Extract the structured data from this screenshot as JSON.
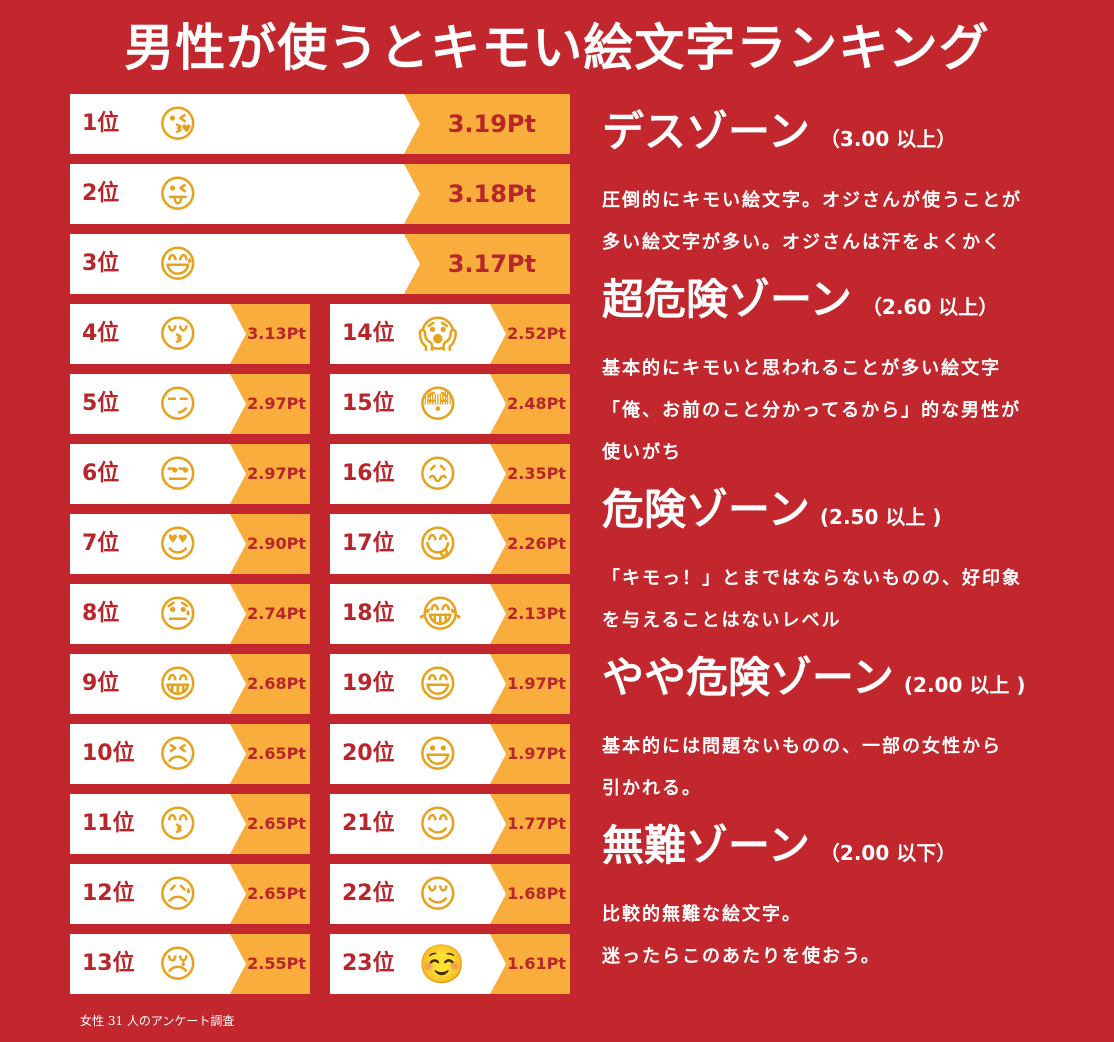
{
  "title": "男性が使うとキモい絵文字ランキング",
  "colors": {
    "background": "#c1272d",
    "score_bg": "#f9ad3d",
    "card_bg": "#ffffff",
    "text_red": "#b8252b"
  },
  "ranking": [
    {
      "rank": "1位",
      "emoji": "😘",
      "score": "3.19Pt"
    },
    {
      "rank": "2位",
      "emoji": "😜",
      "score": "3.18Pt"
    },
    {
      "rank": "3位",
      "emoji": "😅",
      "score": "3.17Pt"
    },
    {
      "rank": "4位",
      "emoji": "😚",
      "score": "3.13Pt"
    },
    {
      "rank": "5位",
      "emoji": "😏",
      "score": "2.97Pt"
    },
    {
      "rank": "6位",
      "emoji": "😒",
      "score": "2.97Pt"
    },
    {
      "rank": "7位",
      "emoji": "😍",
      "score": "2.90Pt"
    },
    {
      "rank": "8位",
      "emoji": "😓",
      "score": "2.74Pt"
    },
    {
      "rank": "9位",
      "emoji": "😁",
      "score": "2.68Pt"
    },
    {
      "rank": "10位",
      "emoji": "😣",
      "score": "2.65Pt"
    },
    {
      "rank": "11位",
      "emoji": "😙",
      "score": "2.65Pt"
    },
    {
      "rank": "12位",
      "emoji": "😥",
      "score": "2.65Pt"
    },
    {
      "rank": "13位",
      "emoji": "😢",
      "score": "2.55Pt"
    },
    {
      "rank": "14位",
      "emoji": "😱",
      "score": "2.52Pt"
    },
    {
      "rank": "15位",
      "emoji": "😳",
      "score": "2.48Pt"
    },
    {
      "rank": "16位",
      "emoji": "😖",
      "score": "2.35Pt"
    },
    {
      "rank": "17位",
      "emoji": "😋",
      "score": "2.26Pt"
    },
    {
      "rank": "18位",
      "emoji": "😂",
      "score": "2.13Pt"
    },
    {
      "rank": "19位",
      "emoji": "😄",
      "score": "1.97Pt"
    },
    {
      "rank": "20位",
      "emoji": "😃",
      "score": "1.97Pt"
    },
    {
      "rank": "21位",
      "emoji": "😊",
      "score": "1.77Pt"
    },
    {
      "rank": "22位",
      "emoji": "😌",
      "score": "1.68Pt"
    },
    {
      "rank": "23位",
      "emoji": "☺️",
      "score": "1.61Pt"
    }
  ],
  "zones": [
    {
      "name": "デスゾーン",
      "range": "（3.00 以上）",
      "desc": [
        "圧倒的にキモい絵文字。オジさんが使うことが",
        "多い絵文字が多い。オジさんは汗をよくかく"
      ]
    },
    {
      "name": "超危険ゾーン",
      "range": "（2.60 以上）",
      "desc": [
        "基本的にキモいと思われることが多い絵文字",
        "「俺、お前のこと分かってるから」的な男性が",
        "使いがち"
      ]
    },
    {
      "name": "危険ゾーン",
      "range": "(2.50 以上 )",
      "desc": [
        "「キモっ！」とまではならないものの、好印象",
        "を与えることはないレベル"
      ]
    },
    {
      "name": "やや危険ゾーン",
      "range": "(2.00 以上 )",
      "desc": [
        "基本的には問題ないものの、一部の女性から",
        "引かれる。"
      ]
    },
    {
      "name": "無難ゾーン",
      "range": "（2.00 以下）",
      "desc": [
        "比較的無難な絵文字。",
        "迷ったらこのあたりを使おう。"
      ]
    }
  ],
  "footnote": "女性 31 人のアンケート調査"
}
